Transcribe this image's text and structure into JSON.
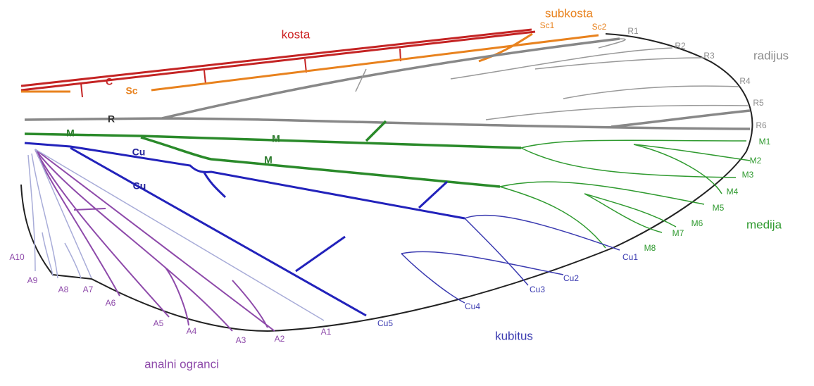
{
  "groups": [
    {
      "name": "kosta",
      "color": "#cc2020"
    },
    {
      "name": "subkosta",
      "color": "#e8821e"
    },
    {
      "name": "radijus",
      "color": "#8c8c8c"
    },
    {
      "name": "medija",
      "color": "#2f9a2f"
    },
    {
      "name": "kubitus",
      "color": "#3a3ab0"
    },
    {
      "name": "analni ogranci",
      "color": "#8e4aaa"
    }
  ],
  "vein_labels": [
    {
      "text": "C",
      "group": 0
    },
    {
      "text": "Sc",
      "group": 1
    },
    {
      "text": "R",
      "group": 2
    },
    {
      "text": "M",
      "group": 3
    },
    {
      "text": "M",
      "group": 3
    },
    {
      "text": "M",
      "group": 3
    },
    {
      "text": "Cu",
      "group": 4
    },
    {
      "text": "Cu",
      "group": 4
    }
  ],
  "branch_labels": [
    {
      "text": "Sc1",
      "group": 1
    },
    {
      "text": "Sc2",
      "group": 1
    },
    {
      "text": "R1",
      "group": 2
    },
    {
      "text": "R2",
      "group": 2
    },
    {
      "text": "R3",
      "group": 2
    },
    {
      "text": "R4",
      "group": 2
    },
    {
      "text": "R5",
      "group": 2
    },
    {
      "text": "R6",
      "group": 2
    },
    {
      "text": "M1",
      "group": 3
    },
    {
      "text": "M2",
      "group": 3
    },
    {
      "text": "M3",
      "group": 3
    },
    {
      "text": "M4",
      "group": 3
    },
    {
      "text": "M5",
      "group": 3
    },
    {
      "text": "M6",
      "group": 3
    },
    {
      "text": "M7",
      "group": 3
    },
    {
      "text": "M8",
      "group": 3
    },
    {
      "text": "Cu1",
      "group": 4
    },
    {
      "text": "Cu2",
      "group": 4
    },
    {
      "text": "Cu3",
      "group": 4
    },
    {
      "text": "Cu4",
      "group": 4
    },
    {
      "text": "Cu5",
      "group": 4
    },
    {
      "text": "A1",
      "group": 5
    },
    {
      "text": "A2",
      "group": 5
    },
    {
      "text": "A3",
      "group": 5
    },
    {
      "text": "A4",
      "group": 5
    },
    {
      "text": "A5",
      "group": 5
    },
    {
      "text": "A6",
      "group": 5
    },
    {
      "text": "A7",
      "group": 5
    },
    {
      "text": "A8",
      "group": 5
    },
    {
      "text": "A9",
      "group": 5
    },
    {
      "text": "A10",
      "group": 5
    }
  ]
}
